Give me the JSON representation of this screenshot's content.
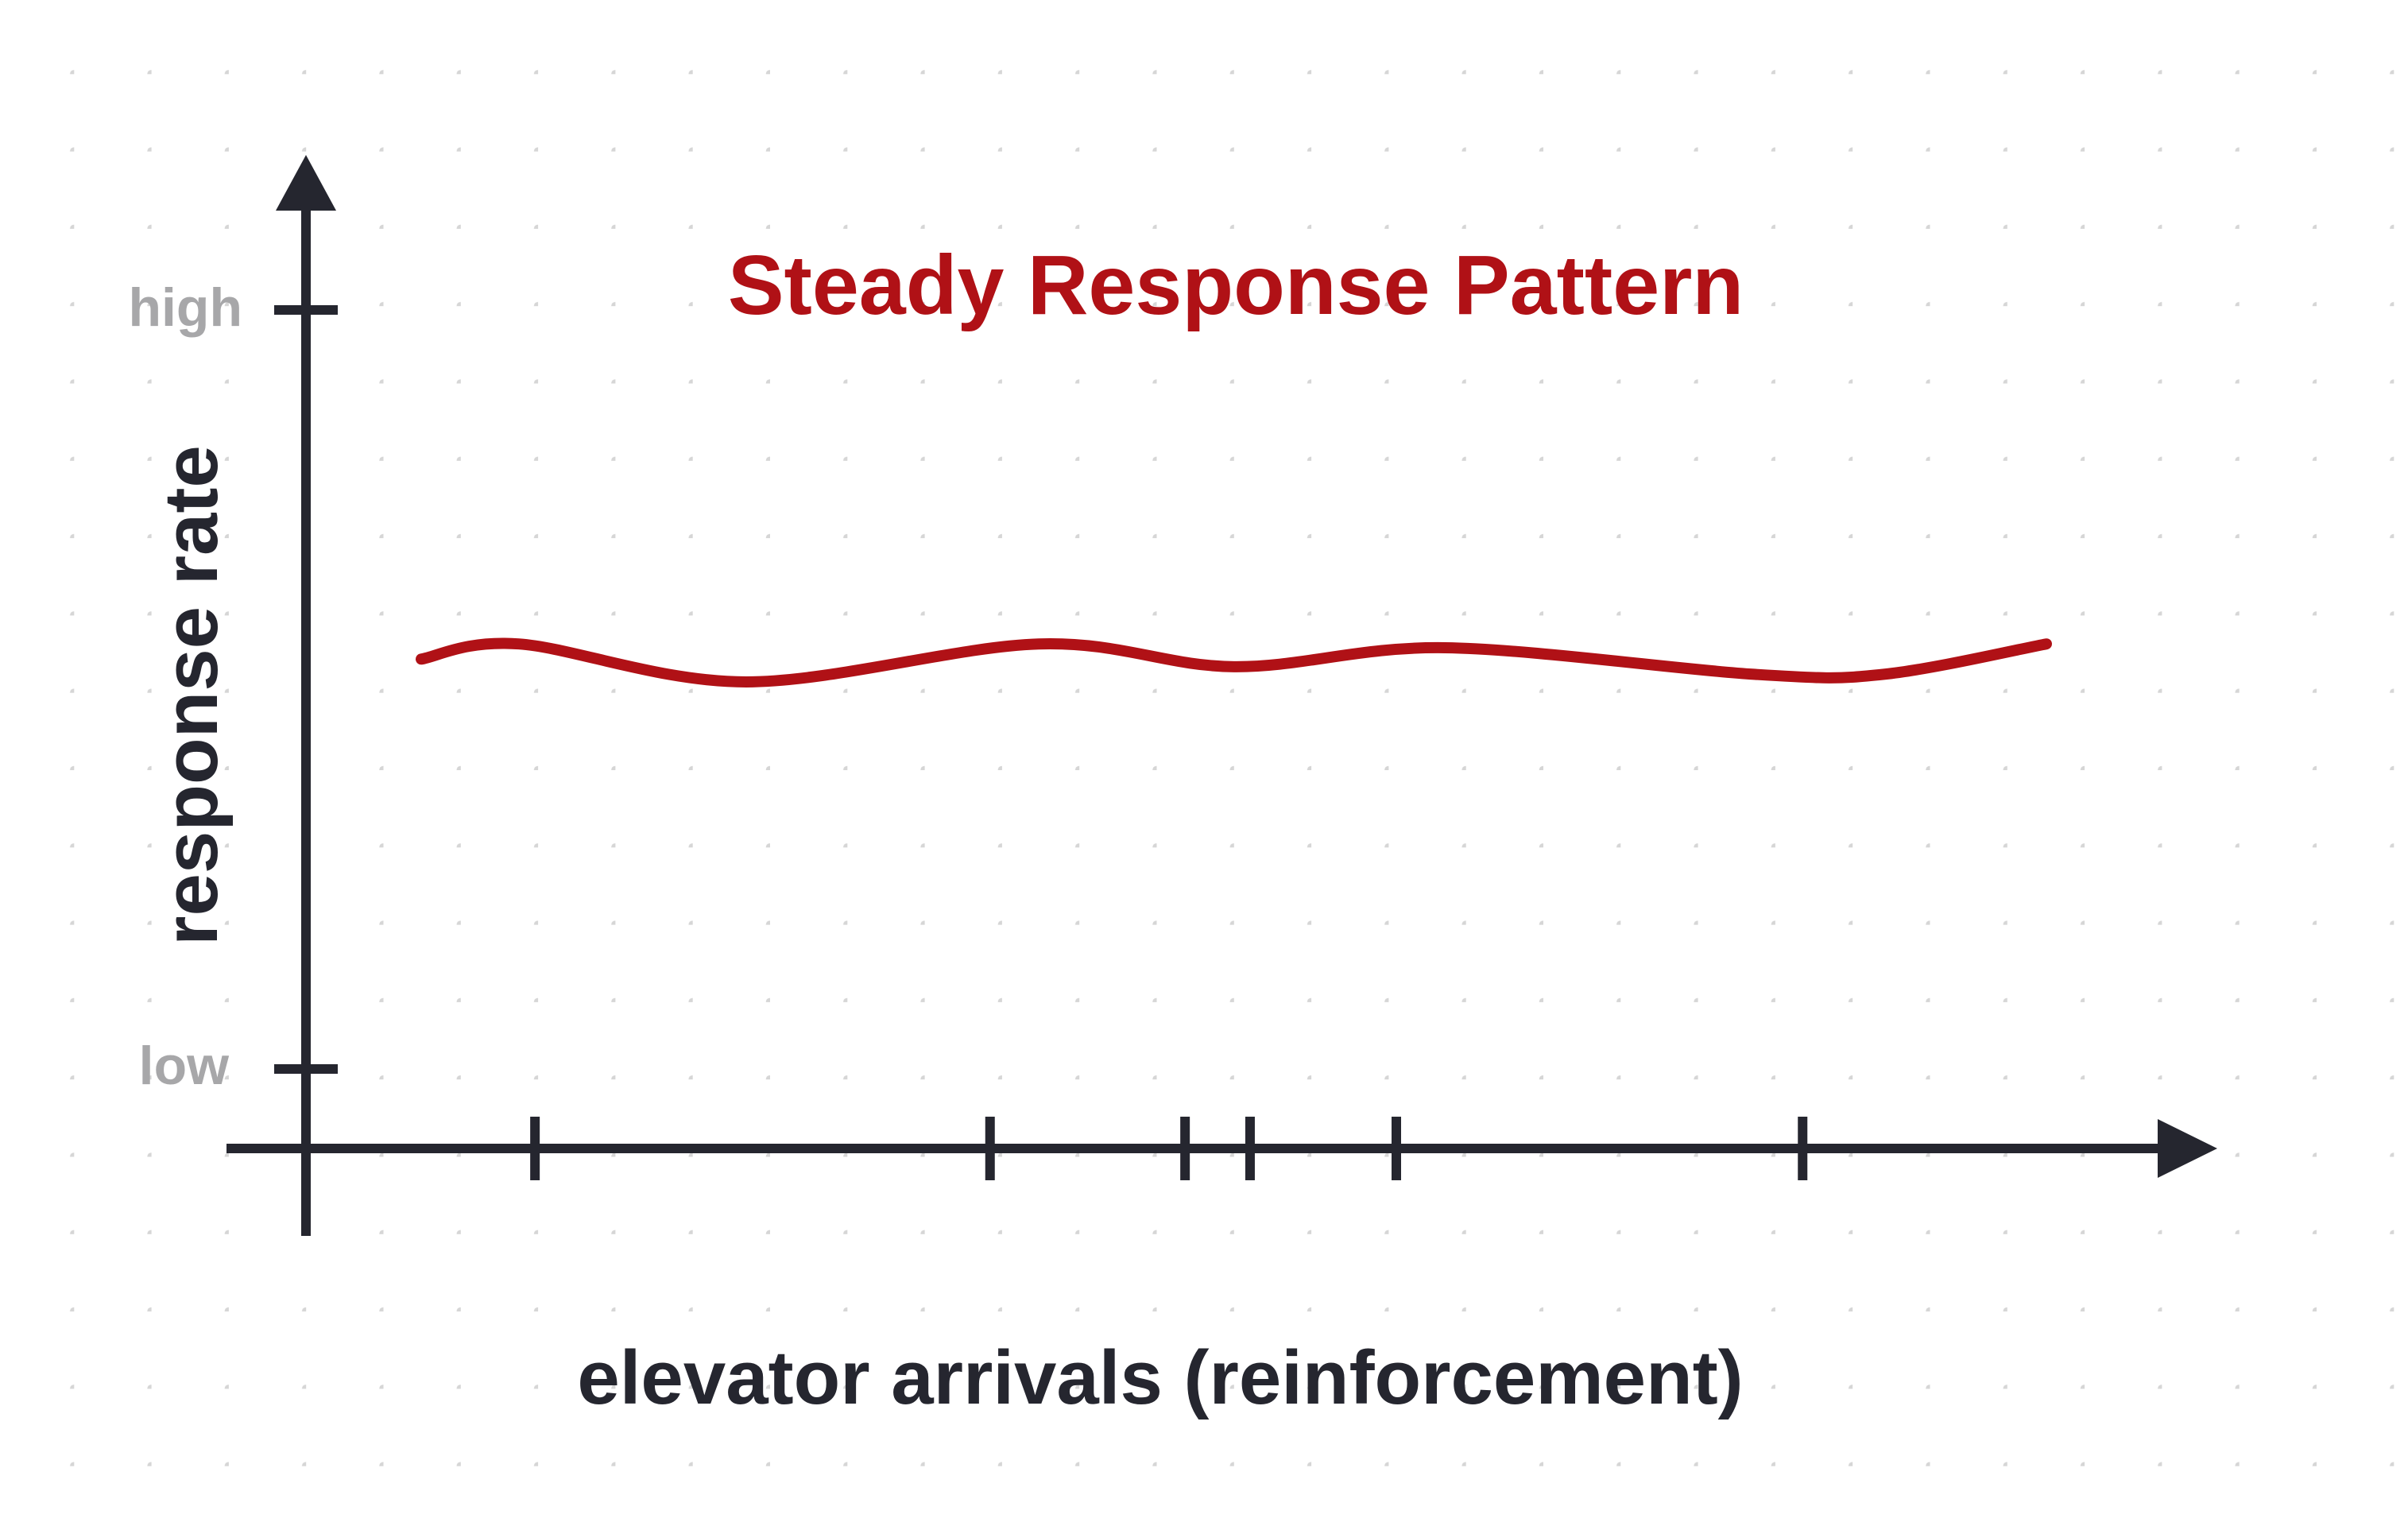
{
  "chart_data": {
    "type": "line",
    "title": "Steady Response Pattern",
    "xlabel": "elevator arrivals (reinforcement)",
    "ylabel": "response rate",
    "y_tick_labels": [
      "high",
      "low"
    ],
    "x_tick_labels": [],
    "grid": "dotted background",
    "series": [
      {
        "x": [
          0,
          0.06,
          0.2,
          0.38,
          0.5,
          0.63,
          0.82,
          0.9,
          1.0
        ],
        "values": [
          0.54,
          0.56,
          0.51,
          0.56,
          0.53,
          0.555,
          0.52,
          0.52,
          0.56
        ]
      }
    ],
    "reinforcement_events_x": [
      0.07,
      0.35,
      0.47,
      0.51,
      0.6,
      0.85
    ],
    "colors": {
      "line": "#b01116",
      "title": "#b01116",
      "axis": "#25262f",
      "tick_label": "#a7a7a9",
      "grid_dot": "#d3d3d3"
    }
  }
}
